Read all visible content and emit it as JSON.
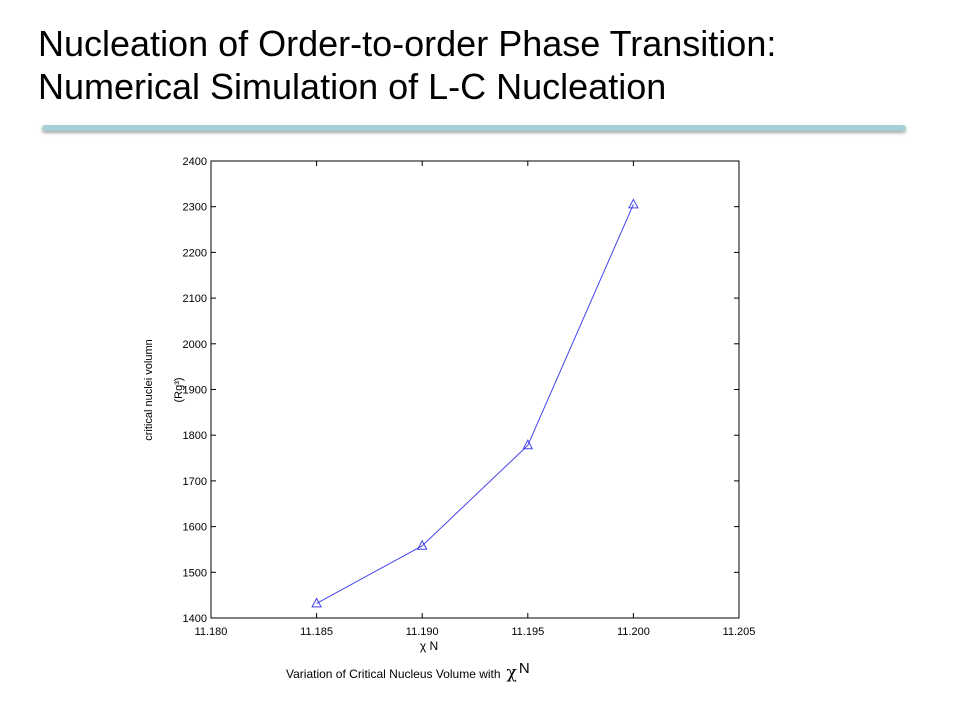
{
  "slide": {
    "title_line1": "Nucleation of Order-to-order Phase Transition:",
    "title_line2": "Numerical Simulation of L-C Nucleation",
    "accent_color": "#a9cfd6"
  },
  "chart_data": {
    "type": "line",
    "x": [
      11.185,
      11.19,
      11.195,
      11.2
    ],
    "series": [
      {
        "values": [
          1432,
          1558,
          1778,
          2305
        ],
        "color": "#4444ee",
        "marker": "triangle-up"
      }
    ],
    "xlabel": "χ N",
    "ylabel_line1": "critical nuclei volumn",
    "ylabel_line2": "(Rg³)",
    "xlim": [
      11.18,
      11.205
    ],
    "ylim": [
      1400,
      2400
    ],
    "xticks": [
      "11.180",
      "11.185",
      "11.190",
      "11.195",
      "11.200",
      "11.205"
    ],
    "yticks": [
      "1400",
      "1500",
      "1600",
      "1700",
      "1800",
      "1900",
      "2000",
      "2100",
      "2200",
      "2300",
      "2400"
    ],
    "grid": false,
    "legend": "none"
  },
  "caption": {
    "text": "Variation of Critical Nucleus Volume with",
    "chi": "χ",
    "n": "N"
  }
}
